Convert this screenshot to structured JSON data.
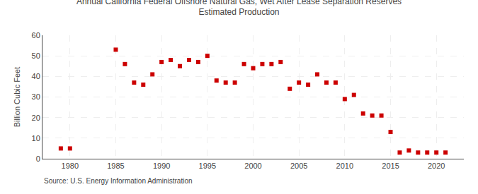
{
  "chart_data": {
    "type": "scatter",
    "title": "Annual California Federal Offshore Natural Gas, Wet After Lease Separation Reserves\nEstimated Production",
    "ylabel": "Billion Cubic Feet",
    "annotations": [
      "Source: U.S. Energy Information Administration"
    ],
    "x": [
      1979,
      1980,
      1985,
      1986,
      1987,
      1988,
      1989,
      1990,
      1991,
      1992,
      1993,
      1994,
      1995,
      1996,
      1997,
      1998,
      1999,
      2000,
      2001,
      2002,
      2003,
      2004,
      2005,
      2006,
      2007,
      2008,
      2009,
      2010,
      2011,
      2012,
      2013,
      2014,
      2015,
      2016,
      2017,
      2018,
      2019,
      2020,
      2021
    ],
    "values": [
      5,
      5,
      53,
      46,
      37,
      36,
      41,
      47,
      48,
      45,
      48,
      47,
      50,
      38,
      37,
      37,
      46,
      44,
      46,
      46,
      47,
      34,
      37,
      36,
      41,
      37,
      37,
      29,
      31,
      22,
      21,
      21,
      13,
      3,
      4,
      3,
      3,
      3,
      3
    ],
    "color": "#cc0000",
    "marker": "square",
    "xlim": [
      1977,
      2023
    ],
    "xticks": [
      1980,
      1985,
      1990,
      1995,
      2000,
      2005,
      2010,
      2015,
      2020
    ],
    "ylim": [
      0,
      60
    ],
    "yticks": [
      0,
      10,
      20,
      30,
      40,
      50,
      60
    ],
    "grid": true
  }
}
